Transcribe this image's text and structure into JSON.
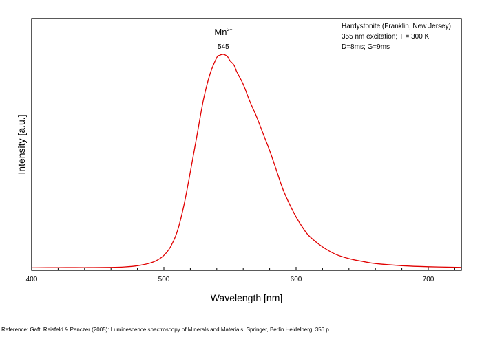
{
  "chart_data": {
    "type": "line",
    "xlabel": "Wavelength [nm]",
    "ylabel": "Intensity [a.u.]",
    "xlim": [
      400,
      725
    ],
    "ylim": [
      0,
      1
    ],
    "x_ticks": [
      400,
      500,
      600,
      700
    ],
    "x_minor_step": 20,
    "grid": false,
    "info_lines": [
      "Hardystonite (Franklin, New Jersey)",
      "355 nm excitation; T = 300 K",
      "D=8ms; G=9ms"
    ],
    "legend_position": "top-right",
    "annotations": [
      {
        "label": "Mn",
        "superscript": "2+",
        "x": 545
      },
      {
        "label": "545",
        "x": 545
      }
    ],
    "series": [
      {
        "color": "#e00000",
        "x": [
          400,
          420,
          440,
          460,
          470,
          480,
          490,
          495,
          500,
          505,
          510,
          515,
          520,
          525,
          530,
          535,
          540,
          542,
          545,
          548,
          550,
          553,
          555,
          560,
          565,
          570,
          575,
          580,
          585,
          590,
          595,
          600,
          605,
          610,
          620,
          630,
          640,
          650,
          660,
          680,
          700,
          725
        ],
        "y": [
          0.002,
          0.003,
          0.003,
          0.004,
          0.006,
          0.012,
          0.025,
          0.038,
          0.06,
          0.1,
          0.17,
          0.29,
          0.45,
          0.62,
          0.79,
          0.91,
          0.985,
          0.995,
          1.0,
          0.99,
          0.97,
          0.95,
          0.92,
          0.86,
          0.78,
          0.71,
          0.63,
          0.55,
          0.46,
          0.37,
          0.3,
          0.24,
          0.19,
          0.15,
          0.1,
          0.065,
          0.045,
          0.032,
          0.022,
          0.012,
          0.007,
          0.004
        ]
      }
    ]
  },
  "reference": "Reference: Gaft, Reisfeld & Panczer (2005): Luminescence spectroscopy of Minerals and Materials, Springer, Berlin Heidelberg, 356 p."
}
